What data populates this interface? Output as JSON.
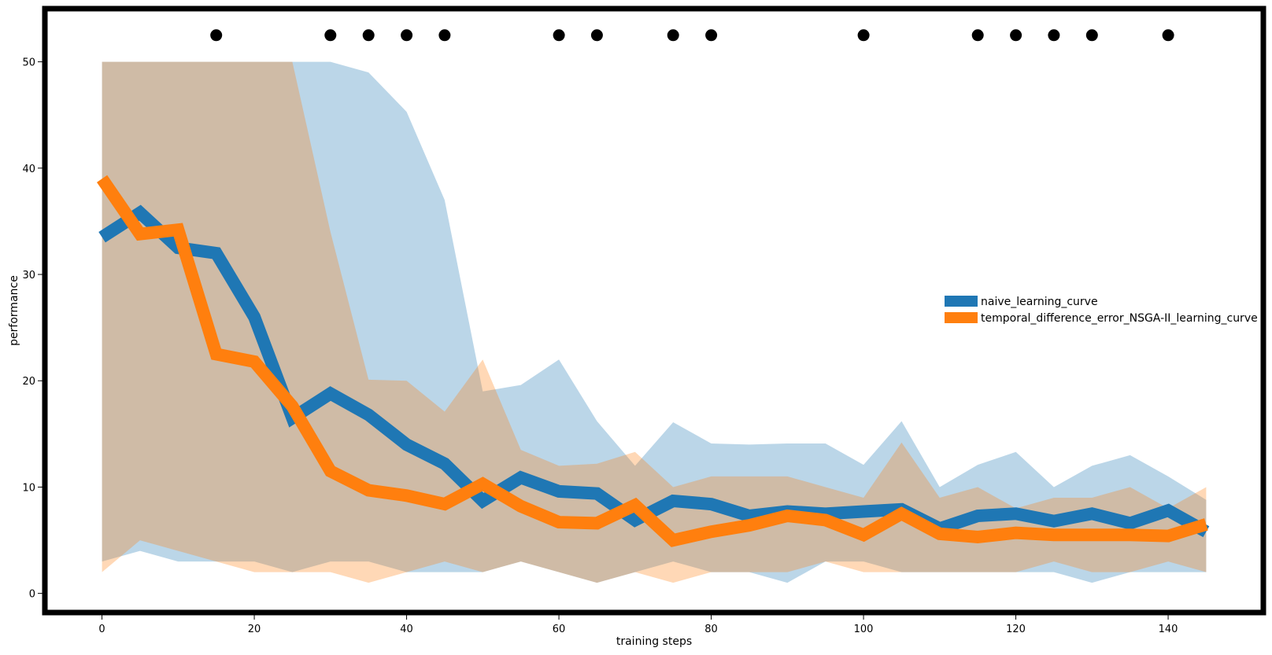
{
  "chart_data": {
    "type": "line",
    "title": "",
    "xlabel": "training steps",
    "ylabel": "performance",
    "xlim": [
      -7.5,
      152.5
    ],
    "ylim": [
      -1.8,
      55
    ],
    "x_ticks": [
      0,
      20,
      40,
      60,
      80,
      100,
      120,
      140
    ],
    "y_ticks": [
      0,
      10,
      20,
      30,
      40,
      50
    ],
    "grid": false,
    "legend_position": "center-right",
    "x": [
      0,
      5,
      10,
      15,
      20,
      25,
      30,
      35,
      40,
      45,
      50,
      55,
      60,
      65,
      70,
      75,
      80,
      85,
      90,
      95,
      100,
      105,
      110,
      115,
      120,
      125,
      130,
      135,
      140,
      145
    ],
    "series": [
      {
        "name": "naive_learning_curve",
        "color": "#1f77b4",
        "values": [
          33.5,
          35.8,
          32.5,
          32.0,
          26.0,
          16.5,
          18.8,
          16.8,
          14.0,
          12.2,
          8.7,
          10.9,
          9.6,
          9.4,
          6.9,
          8.7,
          8.4,
          7.3,
          7.7,
          7.5,
          7.7,
          7.9,
          6.1,
          7.3,
          7.5,
          6.8,
          7.5,
          6.6,
          7.8,
          5.8
        ],
        "band_upper": [
          50,
          50,
          50,
          50,
          50,
          50,
          50,
          49,
          45.3,
          37,
          19,
          19.6,
          22,
          16.2,
          12,
          16.1,
          14.1,
          14,
          14.1,
          14.1,
          12.1,
          16.2,
          10,
          12.1,
          13.3,
          10,
          12,
          13,
          11,
          8.8
        ],
        "band_lower": [
          3,
          4,
          3,
          3,
          3,
          2,
          3,
          3,
          2,
          2,
          2,
          3,
          2,
          1,
          2,
          3,
          2,
          2,
          1,
          3,
          3,
          2,
          2,
          2,
          2,
          2,
          1,
          2,
          2,
          2
        ]
      },
      {
        "name": "temporal_difference_error_NSGA-II_learning_curve",
        "color": "#ff7f0e",
        "values": [
          39.0,
          33.8,
          34.2,
          22.5,
          21.8,
          17.6,
          11.5,
          9.7,
          9.2,
          8.4,
          10.3,
          8.2,
          6.7,
          6.6,
          8.3,
          5.0,
          5.8,
          6.4,
          7.3,
          6.9,
          5.5,
          7.5,
          5.6,
          5.3,
          5.7,
          5.5,
          5.5,
          5.5,
          5.4,
          6.5
        ],
        "band_upper": [
          50,
          50,
          50,
          50,
          50,
          50,
          34,
          20.1,
          20,
          17.1,
          22,
          13.5,
          12,
          12.2,
          13.3,
          10,
          11,
          11,
          11,
          10,
          9,
          14.2,
          9,
          10,
          8,
          9,
          9,
          10,
          8,
          10
        ],
        "band_lower": [
          2,
          5,
          4,
          3,
          2,
          2,
          2,
          1,
          2,
          3,
          2,
          3,
          2,
          1,
          2,
          1,
          2,
          2,
          2,
          3,
          2,
          2,
          2,
          2,
          2,
          3,
          2,
          2,
          3,
          2
        ]
      }
    ],
    "markers": {
      "color": "#000000",
      "y": 52.5,
      "x": [
        15,
        30,
        35,
        40,
        45,
        60,
        65,
        75,
        80,
        100,
        115,
        120,
        125,
        130,
        140
      ]
    }
  }
}
